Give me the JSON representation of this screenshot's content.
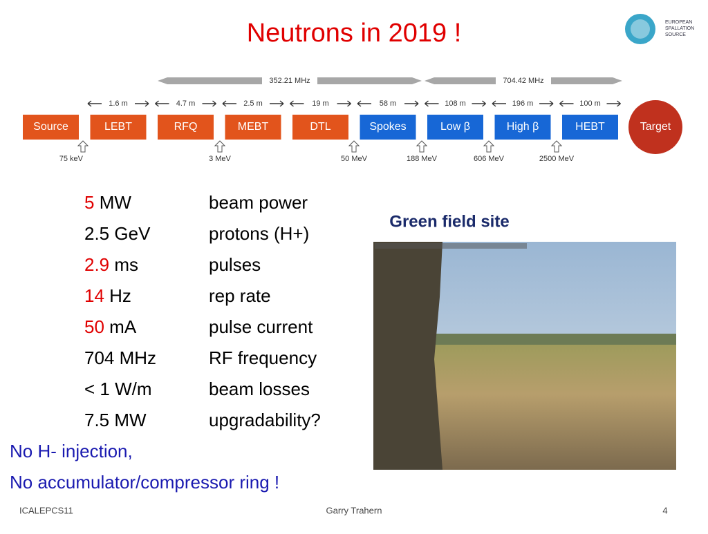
{
  "header": {
    "title": "Neutrons in 2019 !",
    "logo": [
      "EUROPEAN",
      "SPALLATION",
      "SOURCE"
    ]
  },
  "diagram": {
    "frequencies": [
      "352.21 MHz",
      "704.42 MHz"
    ],
    "lengths": [
      "1.6 m",
      "4.7 m",
      "2.5 m",
      "19 m",
      "58 m",
      "108 m",
      "196 m",
      "100 m"
    ],
    "boxes": [
      {
        "label": "Source",
        "color": "#e2541c"
      },
      {
        "label": "LEBT",
        "color": "#e2541c"
      },
      {
        "label": "RFQ",
        "color": "#e2541c"
      },
      {
        "label": "MEBT",
        "color": "#e2541c"
      },
      {
        "label": "DTL",
        "color": "#e2541c"
      },
      {
        "label": "Spokes",
        "color": "#1767d6"
      },
      {
        "label": "Low β",
        "color": "#1767d6"
      },
      {
        "label": "High β",
        "color": "#1767d6"
      },
      {
        "label": "HEBT",
        "color": "#1767d6"
      }
    ],
    "target": {
      "label": "Target",
      "color": "#c0311e"
    },
    "energies": [
      "75 keV",
      "3 MeV",
      "50 MeV",
      "188 MeV",
      "606 MeV",
      "2500 MeV"
    ]
  },
  "parameters": [
    {
      "value": "5",
      "unit": "MW",
      "highlight": true,
      "label": "beam power"
    },
    {
      "value": "2.5",
      "unit": "GeV",
      "highlight": false,
      "label": "protons (H+)"
    },
    {
      "value": "2.9",
      "unit": "ms",
      "highlight": true,
      "label": "pulses"
    },
    {
      "value": "14",
      "unit": "Hz",
      "highlight": true,
      "label": "rep rate"
    },
    {
      "value": "50",
      "unit": "mA",
      "highlight": true,
      "label": "pulse current"
    },
    {
      "value": "704",
      "unit": "MHz",
      "highlight": false,
      "label": "RF frequency"
    },
    {
      "value": "< 1",
      "unit": "W/m",
      "highlight": false,
      "label": "beam losses"
    },
    {
      "value": "7.5",
      "unit": "MW",
      "highlight": false,
      "label": "upgradability?"
    }
  ],
  "notes": [
    "No H- injection,",
    "No accumulator/compressor ring !"
  ],
  "site": {
    "caption": "Green field site"
  },
  "footer": {
    "left": "ICALEPCS11",
    "center": "Garry Trahern",
    "page": "4"
  }
}
